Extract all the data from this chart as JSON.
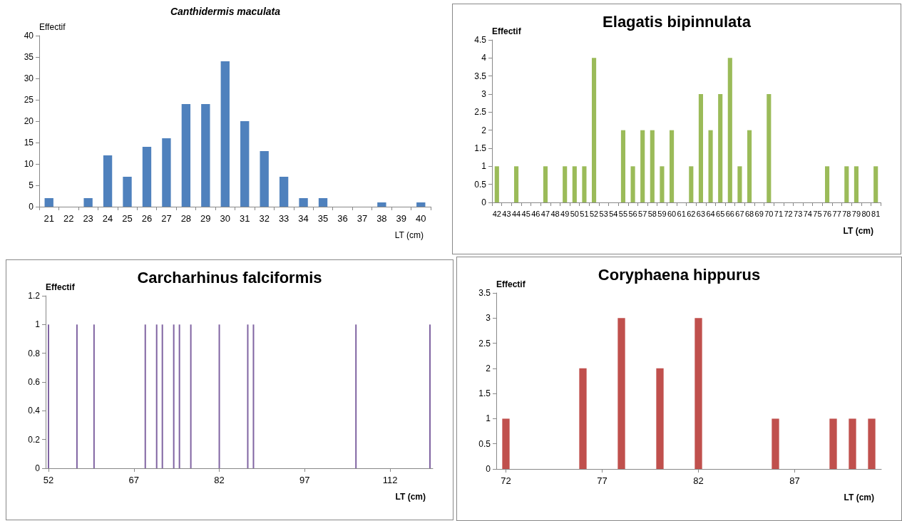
{
  "chart_data": [
    {
      "type": "bar",
      "title": "Canthidermis maculata",
      "ylabel": "Effectif",
      "xlabel": "LT (cm)",
      "categories": [
        "21",
        "22",
        "23",
        "24",
        "25",
        "26",
        "27",
        "28",
        "29",
        "30",
        "31",
        "32",
        "33",
        "34",
        "35",
        "36",
        "37",
        "38",
        "39",
        "40"
      ],
      "values": [
        2,
        0,
        2,
        12,
        7,
        14,
        16,
        24,
        24,
        34,
        20,
        13,
        7,
        2,
        2,
        0,
        0,
        1,
        0,
        1
      ],
      "color": "#4f81bd",
      "ylim": [
        0,
        40
      ],
      "yticks": [
        0,
        5,
        10,
        15,
        20,
        25,
        30,
        35,
        40
      ],
      "grid": false
    },
    {
      "type": "bar",
      "title": "Elagatis bipinnulata",
      "ylabel": "Effectif",
      "xlabel": "LT (cm)",
      "categories": [
        "42",
        "43",
        "44",
        "45",
        "46",
        "47",
        "48",
        "49",
        "50",
        "51",
        "52",
        "53",
        "54",
        "55",
        "56",
        "57",
        "58",
        "59",
        "60",
        "61",
        "62",
        "63",
        "64",
        "65",
        "66",
        "67",
        "68",
        "69",
        "70",
        "71",
        "72",
        "73",
        "74",
        "75",
        "76",
        "77",
        "78",
        "79",
        "80",
        "81"
      ],
      "values": [
        1,
        0,
        1,
        0,
        0,
        1,
        0,
        1,
        1,
        1,
        4,
        0,
        0,
        2,
        1,
        2,
        2,
        1,
        2,
        0,
        1,
        3,
        2,
        3,
        4,
        1,
        2,
        0,
        3,
        0,
        0,
        0,
        0,
        0,
        1,
        0,
        1,
        1,
        0,
        1
      ],
      "color": "#9bbb59",
      "ylim": [
        0,
        4.5
      ],
      "yticks": [
        0,
        0.5,
        1,
        1.5,
        2,
        2.5,
        3,
        3.5,
        4,
        4.5
      ],
      "grid": false
    },
    {
      "type": "bar",
      "title": "Carcharhinus falciformis",
      "ylabel": "Effectif",
      "xlabel": "LT (cm)",
      "x": [
        52,
        57,
        60,
        69,
        71,
        72,
        74,
        75,
        77,
        82,
        87,
        88,
        106,
        119
      ],
      "values": [
        1,
        1,
        1,
        1,
        1,
        1,
        1,
        1,
        1,
        1,
        1,
        1,
        1,
        1
      ],
      "color": "#8064a2",
      "xlim": [
        51.5,
        119.5
      ],
      "xticks": [
        52,
        67,
        82,
        97,
        112
      ],
      "ylim": [
        0,
        1.2
      ],
      "yticks": [
        0,
        0.2,
        0.4,
        0.6,
        0.8,
        1,
        1.2
      ],
      "grid": false
    },
    {
      "type": "bar",
      "title": "Coryphaena hippurus",
      "ylabel": "Effectif",
      "xlabel": "LT (cm)",
      "x": [
        72,
        76,
        78,
        80,
        82,
        86,
        89,
        90,
        91
      ],
      "values": [
        1,
        2,
        3,
        2,
        3,
        1,
        1,
        1,
        1
      ],
      "color": "#c0504d",
      "xlim": [
        71.5,
        91.5
      ],
      "xticks": [
        72,
        77,
        82,
        87
      ],
      "ylim": [
        0,
        3.5
      ],
      "yticks": [
        0,
        0.5,
        1,
        1.5,
        2,
        2.5,
        3,
        3.5
      ],
      "grid": false
    }
  ]
}
